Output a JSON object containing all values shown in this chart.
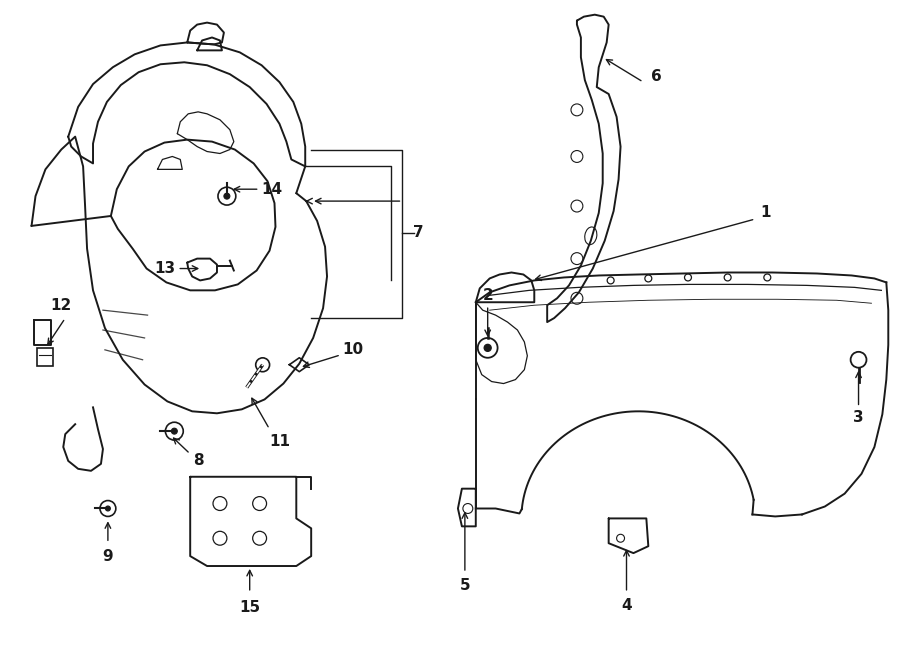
{
  "bg_color": "#ffffff",
  "line_color": "#1a1a1a",
  "figsize": [
    9.0,
    6.62
  ],
  "dpi": 100,
  "lw_main": 1.4,
  "lw_thin": 0.9,
  "fontsize": 11
}
